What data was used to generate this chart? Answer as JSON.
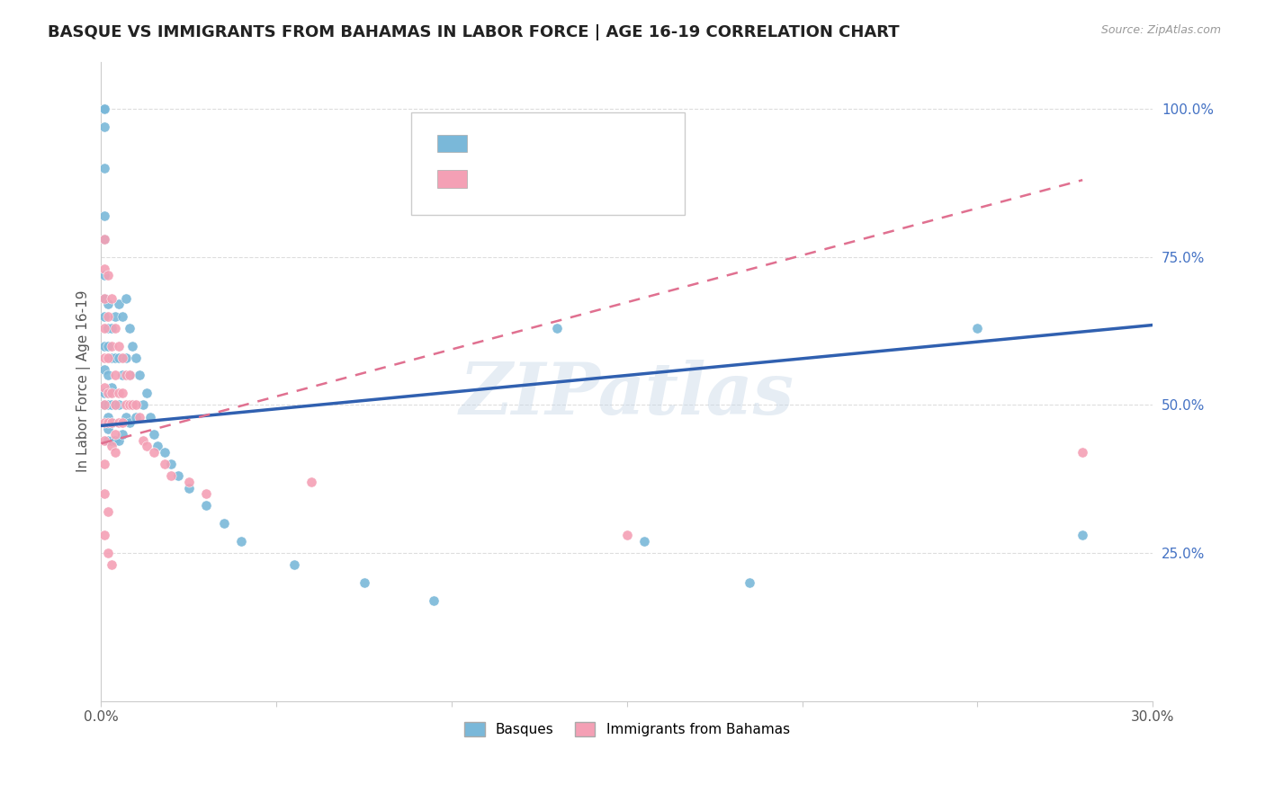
{
  "title": "BASQUE VS IMMIGRANTS FROM BAHAMAS IN LABOR FORCE | AGE 16-19 CORRELATION CHART",
  "source": "Source: ZipAtlas.com",
  "ylabel": "In Labor Force | Age 16-19",
  "ytick_labels": [
    "25.0%",
    "50.0%",
    "75.0%",
    "100.0%"
  ],
  "ytick_values": [
    0.25,
    0.5,
    0.75,
    1.0
  ],
  "xmin": 0.0,
  "xmax": 0.3,
  "ymin": 0.0,
  "ymax": 1.08,
  "color_blue": "#7ab8d9",
  "color_pink": "#f4a0b5",
  "color_blue_text": "#4472c4",
  "color_pink_text": "#e377c2",
  "color_trendline_blue": "#3060b0",
  "color_trendline_pink": "#e07090",
  "watermark": "ZIPatlas",
  "basque_x": [
    0.001,
    0.001,
    0.001,
    0.001,
    0.001,
    0.001,
    0.001,
    0.001,
    0.001,
    0.001,
    0.001,
    0.001,
    0.001,
    0.001,
    0.002,
    0.002,
    0.002,
    0.002,
    0.002,
    0.002,
    0.002,
    0.002,
    0.002,
    0.003,
    0.003,
    0.003,
    0.003,
    0.003,
    0.003,
    0.004,
    0.004,
    0.004,
    0.004,
    0.005,
    0.005,
    0.005,
    0.005,
    0.006,
    0.006,
    0.006,
    0.007,
    0.007,
    0.007,
    0.008,
    0.008,
    0.008,
    0.009,
    0.009,
    0.01,
    0.01,
    0.011,
    0.012,
    0.013,
    0.014,
    0.015,
    0.016,
    0.018,
    0.02,
    0.022,
    0.025,
    0.03,
    0.035,
    0.04,
    0.055,
    0.075,
    0.095,
    0.13,
    0.155,
    0.185,
    0.25,
    0.28
  ],
  "basque_y": [
    1.0,
    1.0,
    1.0,
    0.97,
    0.9,
    0.82,
    0.78,
    0.72,
    0.68,
    0.65,
    0.6,
    0.56,
    0.52,
    0.5,
    0.67,
    0.63,
    0.6,
    0.55,
    0.52,
    0.5,
    0.48,
    0.46,
    0.44,
    0.63,
    0.58,
    0.53,
    0.5,
    0.47,
    0.44,
    0.65,
    0.58,
    0.5,
    0.44,
    0.67,
    0.58,
    0.5,
    0.44,
    0.65,
    0.55,
    0.45,
    0.68,
    0.58,
    0.48,
    0.63,
    0.55,
    0.47,
    0.6,
    0.5,
    0.58,
    0.48,
    0.55,
    0.5,
    0.52,
    0.48,
    0.45,
    0.43,
    0.42,
    0.4,
    0.38,
    0.36,
    0.33,
    0.3,
    0.27,
    0.23,
    0.2,
    0.17,
    0.63,
    0.27,
    0.2,
    0.63,
    0.28
  ],
  "bahamas_x": [
    0.001,
    0.001,
    0.001,
    0.001,
    0.001,
    0.001,
    0.001,
    0.001,
    0.001,
    0.001,
    0.002,
    0.002,
    0.002,
    0.002,
    0.002,
    0.003,
    0.003,
    0.003,
    0.003,
    0.003,
    0.004,
    0.004,
    0.004,
    0.004,
    0.004,
    0.005,
    0.005,
    0.005,
    0.006,
    0.006,
    0.006,
    0.007,
    0.007,
    0.008,
    0.008,
    0.009,
    0.01,
    0.011,
    0.012,
    0.013,
    0.015,
    0.018,
    0.02,
    0.025,
    0.03,
    0.06,
    0.001,
    0.001,
    0.002,
    0.002,
    0.003,
    0.15,
    0.28
  ],
  "bahamas_y": [
    0.78,
    0.73,
    0.68,
    0.63,
    0.58,
    0.53,
    0.5,
    0.47,
    0.44,
    0.4,
    0.72,
    0.65,
    0.58,
    0.52,
    0.47,
    0.68,
    0.6,
    0.52,
    0.47,
    0.43,
    0.63,
    0.55,
    0.5,
    0.45,
    0.42,
    0.6,
    0.52,
    0.47,
    0.58,
    0.52,
    0.47,
    0.55,
    0.5,
    0.55,
    0.5,
    0.5,
    0.5,
    0.48,
    0.44,
    0.43,
    0.42,
    0.4,
    0.38,
    0.37,
    0.35,
    0.37,
    0.35,
    0.28,
    0.32,
    0.25,
    0.23,
    0.28,
    0.42
  ],
  "blue_line_x": [
    0.0,
    0.3
  ],
  "blue_line_y": [
    0.465,
    0.635
  ],
  "pink_line_x": [
    0.0,
    0.28
  ],
  "pink_line_y": [
    0.435,
    0.88
  ],
  "grid_color": "#dddddd",
  "background_color": "#ffffff"
}
